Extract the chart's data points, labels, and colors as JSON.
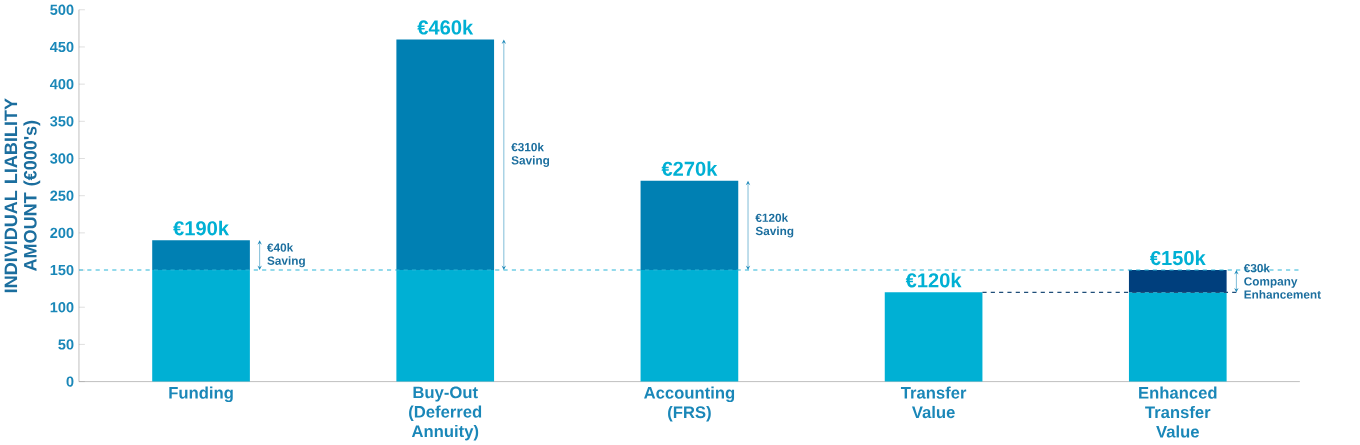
{
  "chart_data": {
    "type": "bar",
    "stacked": true,
    "ylabel": "INDIVIDUAL LIABILITY AMOUNT (€000's)",
    "categories": [
      "Funding",
      "Buy-Out (Deferred Annuity)",
      "Accounting (FRS)",
      "Transfer Value",
      "Enhanced Transfer Value"
    ],
    "series": [
      {
        "color": "#00b0d4",
        "values": [
          150,
          150,
          150,
          120,
          120
        ]
      },
      {
        "colors": [
          "#0080b3",
          "#0080b3",
          "#0080b3",
          "#0080b3",
          "#003f7d"
        ],
        "values": [
          40,
          310,
          120,
          0,
          30
        ]
      }
    ],
    "totals": [
      "€190k",
      "€460k",
      "€270k",
      "€120k",
      "€150k"
    ],
    "ref_lines": [
      {
        "axis": "y",
        "value": 150,
        "color": "#2bb5d8",
        "line_style": "dashed"
      },
      {
        "axis": "y",
        "value": 120,
        "color": "#1f4e79",
        "line_style": "dashed"
      }
    ],
    "annotations": [
      "€40k Saving",
      "€310k Saving",
      "€120k Saving",
      "€30k Company Enhancement"
    ],
    "ylim": [
      0,
      500
    ],
    "yticks": [
      0,
      50,
      100,
      150,
      200,
      250,
      300,
      350,
      400,
      450,
      500
    ],
    "grid": false
  }
}
